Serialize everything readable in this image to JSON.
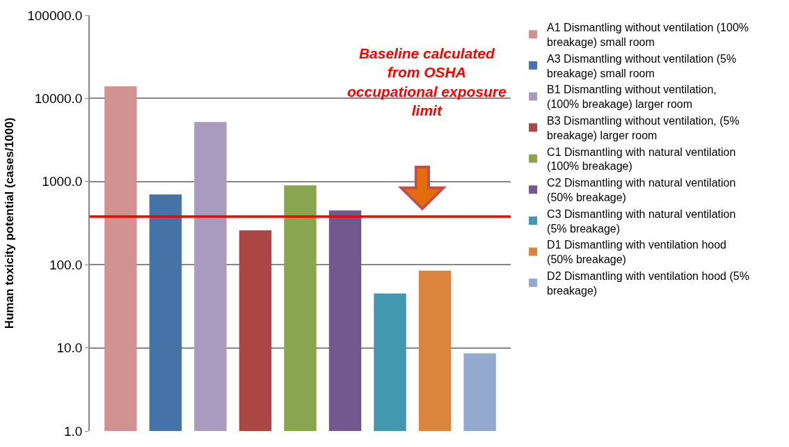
{
  "chart_data": {
    "type": "bar",
    "ylabel": "Human toxicity potential (cases/1000)",
    "categories": [
      null
    ],
    "series": [
      {
        "name": "A1 Dismantling without ventilation (100% breakage) small room",
        "color": "#d19392",
        "values": [
          14000
        ]
      },
      {
        "name": "A3 Dismantling without ventilation (5% breakage) small room",
        "color": "#4572a7",
        "values": [
          700
        ]
      },
      {
        "name": "B1 Dismantling without ventilation, (100% breakage) larger room",
        "color": "#a99bbd",
        "values": [
          5200
        ]
      },
      {
        "name": "B3 Dismantling without ventilation, (5% breakage) larger room",
        "color": "#aa4643",
        "values": [
          260
        ]
      },
      {
        "name": "C1 Dismantling with natural ventilation (100% breakage)",
        "color": "#89a54e",
        "values": [
          900
        ]
      },
      {
        "name": "C2 Dismantling with natural ventilation (50% breakage)",
        "color": "#71588f",
        "values": [
          450
        ]
      },
      {
        "name": "C3 Dismantling with natural ventilation (5% breakage)",
        "color": "#4198af",
        "values": [
          45
        ]
      },
      {
        "name": "D1 Dismantling with ventilation hood (50% breakage)",
        "color": "#db843d",
        "values": [
          85
        ]
      },
      {
        "name": "D2 Dismantling with ventilation hood (5% breakage)",
        "color": "#93a9cf",
        "values": [
          8.6
        ]
      }
    ],
    "log": true,
    "ylim": [
      1,
      100000
    ],
    "yticks": [
      {
        "value": 1,
        "label": "1.0"
      },
      {
        "value": 10,
        "label": "10.0"
      },
      {
        "value": 100,
        "label": "100.0"
      },
      {
        "value": 1000,
        "label": "1000.0"
      },
      {
        "value": 10000,
        "label": "10000.0"
      },
      {
        "value": 100000,
        "label": "100000.0"
      }
    ],
    "grid": "y",
    "legend": "right",
    "ref_lines": [
      {
        "axis": "y",
        "value": 380,
        "label": "Baseline calculated from OSHA occupational exposure limit",
        "color": "#ff0000"
      }
    ]
  }
}
